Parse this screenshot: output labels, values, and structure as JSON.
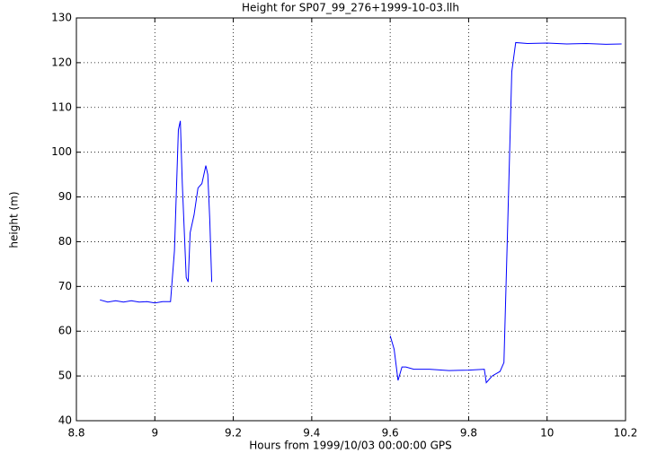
{
  "chart_data": {
    "type": "line",
    "title": "Height for SP07_99_276+1999-10-03.llh",
    "x_label": "Hours from 1999/10/03 00:00:00 GPS",
    "y_label": "height (m)",
    "color": "#0000ff",
    "grid": true,
    "xlim": [
      8.8,
      10.2
    ],
    "xticks": [
      8.8,
      9,
      9.2,
      9.4,
      9.6,
      9.8,
      10,
      10.2
    ],
    "ylim": [
      40,
      130
    ],
    "yticks": [
      40,
      50,
      60,
      70,
      80,
      90,
      100,
      110,
      120,
      130
    ],
    "x": [
      8.86,
      8.88,
      8.9,
      8.92,
      8.94,
      8.96,
      8.98,
      9.0,
      9.02,
      9.04,
      9.05,
      9.06,
      9.065,
      9.07,
      9.08,
      9.085,
      9.09,
      9.1,
      9.11,
      9.12,
      9.13,
      9.135,
      9.14,
      9.145,
      null,
      9.6,
      9.61,
      9.62,
      9.63,
      9.64,
      9.66,
      9.7,
      9.75,
      9.8,
      9.84,
      9.845,
      9.86,
      9.88,
      9.89,
      9.9,
      9.91,
      9.92,
      9.95,
      10,
      10.05,
      10.1,
      10.15,
      10.19
    ],
    "values": [
      67,
      66.5,
      66.8,
      66.5,
      66.8,
      66.5,
      66.6,
      66.3,
      66.6,
      66.6,
      78,
      105,
      107,
      93,
      72,
      71,
      82,
      86,
      92,
      93,
      97,
      95,
      85,
      71,
      null,
      59,
      56,
      49,
      52,
      52,
      51.5,
      51.5,
      51.2,
      51.3,
      51.5,
      48.5,
      50,
      51,
      53,
      85,
      118,
      124.5,
      124.3,
      124.4,
      124.2,
      124.3,
      124.1,
      124.2
    ]
  }
}
